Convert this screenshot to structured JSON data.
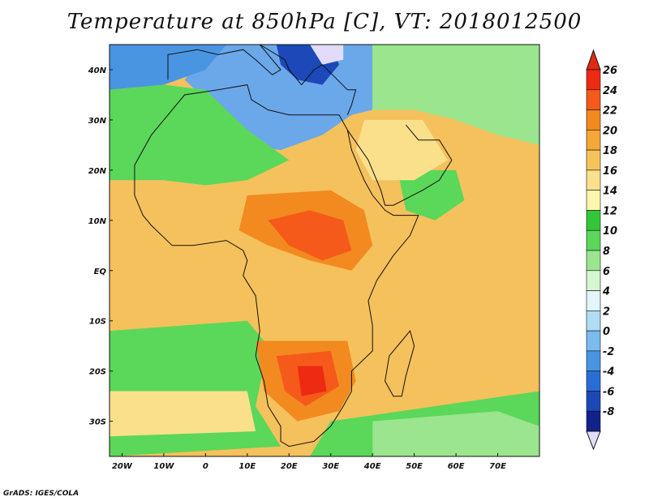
{
  "title": "Temperature at 850hPa [C], VT: 2018012500",
  "credit": "GrADS: IGES/COLA",
  "map": {
    "projection": "lat-lon",
    "lon_range": [
      -23,
      80
    ],
    "lat_range": [
      -37,
      45
    ],
    "lat_ticks": [
      {
        "lat": 40,
        "label": "40N"
      },
      {
        "lat": 30,
        "label": "30N"
      },
      {
        "lat": 20,
        "label": "20N"
      },
      {
        "lat": 10,
        "label": "10N"
      },
      {
        "lat": 0,
        "label": "EQ"
      },
      {
        "lat": -10,
        "label": "10S"
      },
      {
        "lat": -20,
        "label": "20S"
      },
      {
        "lat": -30,
        "label": "30S"
      }
    ],
    "lon_ticks": [
      {
        "lon": -20,
        "label": "20W"
      },
      {
        "lon": -10,
        "label": "10W"
      },
      {
        "lon": 0,
        "label": "0"
      },
      {
        "lon": 10,
        "label": "10E"
      },
      {
        "lon": 20,
        "label": "20E"
      },
      {
        "lon": 30,
        "label": "30E"
      },
      {
        "lon": 40,
        "label": "40E"
      },
      {
        "lon": 50,
        "label": "50E"
      },
      {
        "lon": 60,
        "label": "60E"
      },
      {
        "lon": 70,
        "label": "70E"
      }
    ],
    "background_color": "#f5c15c"
  },
  "colorbar": {
    "levels": [
      "26",
      "24",
      "22",
      "20",
      "18",
      "16",
      "14",
      "12",
      "10",
      "8",
      "6",
      "4",
      "2",
      "0",
      "-2",
      "-4",
      "-6",
      "-8"
    ],
    "colors": [
      "#ee2a12",
      "#f55a1a",
      "#f28a20",
      "#f5a837",
      "#f6c45a",
      "#fbe08c",
      "#fbf5b0",
      "#33c738",
      "#5bd75a",
      "#9ae58e",
      "#d4f6d0",
      "#e2f5fb",
      "#b0dcf6",
      "#7bbcee",
      "#4a95e2",
      "#2a6ed5",
      "#1c48b8",
      "#12228a"
    ],
    "top_arrow_color": "#e02a12",
    "bottom_arrow_color": "#e2dcfa"
  },
  "fields": [
    {
      "name": "cold-mediterranean",
      "color": "#6aa8ea",
      "poly": [
        [
          2,
          45
        ],
        [
          40,
          45
        ],
        [
          40,
          32
        ],
        [
          35,
          31
        ],
        [
          28,
          27
        ],
        [
          18,
          24
        ],
        [
          10,
          25
        ],
        [
          5,
          30
        ],
        [
          0,
          34
        ],
        [
          -5,
          38
        ]
      ]
    },
    {
      "name": "very-cold-balkans",
      "color": "#1c48b8",
      "poly": [
        [
          17,
          45
        ],
        [
          30,
          45
        ],
        [
          32,
          41
        ],
        [
          28,
          37
        ],
        [
          22,
          38
        ],
        [
          18,
          41
        ]
      ]
    },
    {
      "name": "coldest-core",
      "color": "#e2dcfa",
      "poly": [
        [
          25,
          45
        ],
        [
          33,
          45
        ],
        [
          33,
          42
        ],
        [
          28,
          41
        ]
      ]
    },
    {
      "name": "blue-atlantic-north",
      "color": "#4a95e2",
      "poly": [
        [
          -23,
          45
        ],
        [
          5,
          45
        ],
        [
          0,
          40
        ],
        [
          -10,
          37
        ],
        [
          -23,
          36
        ]
      ]
    },
    {
      "name": "green-sahara-north",
      "color": "#5bd75a",
      "poly": [
        [
          -23,
          36
        ],
        [
          -10,
          37
        ],
        [
          0,
          36
        ],
        [
          10,
          28
        ],
        [
          20,
          22
        ],
        [
          10,
          18
        ],
        [
          0,
          17
        ],
        [
          -10,
          18
        ],
        [
          -23,
          18
        ]
      ]
    },
    {
      "name": "green-middle-east",
      "color": "#9ae58e",
      "poly": [
        [
          40,
          45
        ],
        [
          80,
          45
        ],
        [
          80,
          25
        ],
        [
          70,
          27
        ],
        [
          60,
          30
        ],
        [
          50,
          32
        ],
        [
          40,
          32
        ]
      ]
    },
    {
      "name": "green-arabia",
      "color": "#5bd75a",
      "poly": [
        [
          46,
          20
        ],
        [
          60,
          20
        ],
        [
          62,
          14
        ],
        [
          55,
          10
        ],
        [
          48,
          12
        ]
      ]
    },
    {
      "name": "pale-yellow-arabia",
      "color": "#fbe08c",
      "poly": [
        [
          38,
          30
        ],
        [
          52,
          30
        ],
        [
          58,
          22
        ],
        [
          50,
          18
        ],
        [
          40,
          18
        ],
        [
          36,
          24
        ]
      ]
    },
    {
      "name": "green-southwest-atlantic",
      "color": "#5bd75a",
      "poly": [
        [
          -23,
          -12
        ],
        [
          10,
          -10
        ],
        [
          15,
          -15
        ],
        [
          12,
          -27
        ],
        [
          18,
          -35
        ],
        [
          -23,
          -37
        ]
      ]
    },
    {
      "name": "pale-south-atlantic",
      "color": "#fbe08c",
      "poly": [
        [
          -23,
          -24
        ],
        [
          10,
          -24
        ],
        [
          12,
          -32
        ],
        [
          -23,
          -33
        ]
      ]
    },
    {
      "name": "green-south-indian",
      "color": "#5bd75a",
      "poly": [
        [
          30,
          -30
        ],
        [
          80,
          -24
        ],
        [
          80,
          -37
        ],
        [
          25,
          -37
        ]
      ]
    },
    {
      "name": "pale-green-south-indian",
      "color": "#9ae58e",
      "poly": [
        [
          40,
          -30
        ],
        [
          70,
          -28
        ],
        [
          80,
          -31
        ],
        [
          80,
          -37
        ],
        [
          40,
          -37
        ]
      ]
    },
    {
      "name": "hot-central-africa",
      "color": "#f28a20",
      "poly": [
        [
          10,
          15
        ],
        [
          30,
          16
        ],
        [
          38,
          12
        ],
        [
          40,
          5
        ],
        [
          35,
          0
        ],
        [
          25,
          2
        ],
        [
          15,
          5
        ],
        [
          8,
          8
        ]
      ]
    },
    {
      "name": "hotter-central-africa",
      "color": "#f55a1a",
      "poly": [
        [
          15,
          10
        ],
        [
          25,
          12
        ],
        [
          33,
          10
        ],
        [
          35,
          4
        ],
        [
          28,
          2
        ],
        [
          20,
          5
        ]
      ]
    },
    {
      "name": "hot-southern-africa",
      "color": "#f28a20",
      "poly": [
        [
          12,
          -14
        ],
        [
          34,
          -14
        ],
        [
          36,
          -22
        ],
        [
          32,
          -28
        ],
        [
          22,
          -30
        ],
        [
          14,
          -24
        ]
      ]
    },
    {
      "name": "hotter-southern-africa",
      "color": "#f55a1a",
      "poly": [
        [
          17,
          -17
        ],
        [
          30,
          -16
        ],
        [
          32,
          -23
        ],
        [
          24,
          -27
        ],
        [
          19,
          -24
        ]
      ]
    },
    {
      "name": "hottest-southern-africa",
      "color": "#ee2a12",
      "poly": [
        [
          22,
          -19
        ],
        [
          28,
          -19
        ],
        [
          29,
          -24
        ],
        [
          23,
          -25
        ]
      ]
    }
  ],
  "coastline": [
    [
      -17,
      21
    ],
    [
      -17,
      15
    ],
    [
      -15,
      11
    ],
    [
      -13,
      9
    ],
    [
      -8,
      5
    ],
    [
      -3,
      5
    ],
    [
      5,
      6
    ],
    [
      9,
      4
    ],
    [
      10,
      2
    ],
    [
      9,
      -1
    ],
    [
      12,
      -5
    ],
    [
      13,
      -12
    ],
    [
      12,
      -17
    ],
    [
      14,
      -22
    ],
    [
      15,
      -27
    ],
    [
      18,
      -31
    ],
    [
      18,
      -34
    ],
    [
      20,
      -35
    ],
    [
      26,
      -34
    ],
    [
      30,
      -31
    ],
    [
      33,
      -27
    ],
    [
      35,
      -24
    ],
    [
      35,
      -20
    ],
    [
      40,
      -16
    ],
    [
      40,
      -11
    ],
    [
      39,
      -6
    ],
    [
      41,
      -2
    ],
    [
      45,
      3
    ],
    [
      49,
      7
    ],
    [
      51,
      11
    ],
    [
      45,
      11
    ],
    [
      43,
      12
    ],
    [
      40,
      15
    ],
    [
      38,
      18
    ],
    [
      35,
      24
    ],
    [
      34,
      28
    ],
    [
      32,
      31
    ],
    [
      27,
      31
    ],
    [
      20,
      31
    ],
    [
      15,
      32
    ],
    [
      11,
      34
    ],
    [
      10,
      37
    ],
    [
      3,
      36
    ],
    [
      -5,
      35
    ],
    [
      -10,
      30
    ],
    [
      -13,
      27
    ],
    [
      -17,
      21
    ]
  ],
  "madagascar": [
    [
      49,
      -12
    ],
    [
      50,
      -15
    ],
    [
      48,
      -21
    ],
    [
      47,
      -25
    ],
    [
      45,
      -25
    ],
    [
      43,
      -22
    ],
    [
      44,
      -17
    ],
    [
      47,
      -14
    ]
  ],
  "arabia_coast": [
    [
      34,
      28
    ],
    [
      39,
      22
    ],
    [
      42,
      16
    ],
    [
      43,
      13
    ],
    [
      45,
      13
    ],
    [
      52,
      16
    ],
    [
      56,
      18
    ],
    [
      59,
      22
    ],
    [
      56,
      26
    ],
    [
      51,
      26
    ],
    [
      48,
      29
    ]
  ],
  "europe_coast": [
    [
      -9,
      38
    ],
    [
      -9,
      43
    ],
    [
      -2,
      44
    ],
    [
      3,
      43
    ],
    [
      9,
      44
    ],
    [
      12,
      42
    ],
    [
      16,
      39
    ],
    [
      18,
      40
    ],
    [
      13,
      45
    ],
    [
      19,
      42
    ],
    [
      20,
      40
    ],
    [
      23,
      37
    ],
    [
      26,
      40
    ],
    [
      28,
      41
    ],
    [
      34,
      36
    ],
    [
      36,
      36
    ],
    [
      35,
      33
    ],
    [
      34,
      31
    ]
  ]
}
